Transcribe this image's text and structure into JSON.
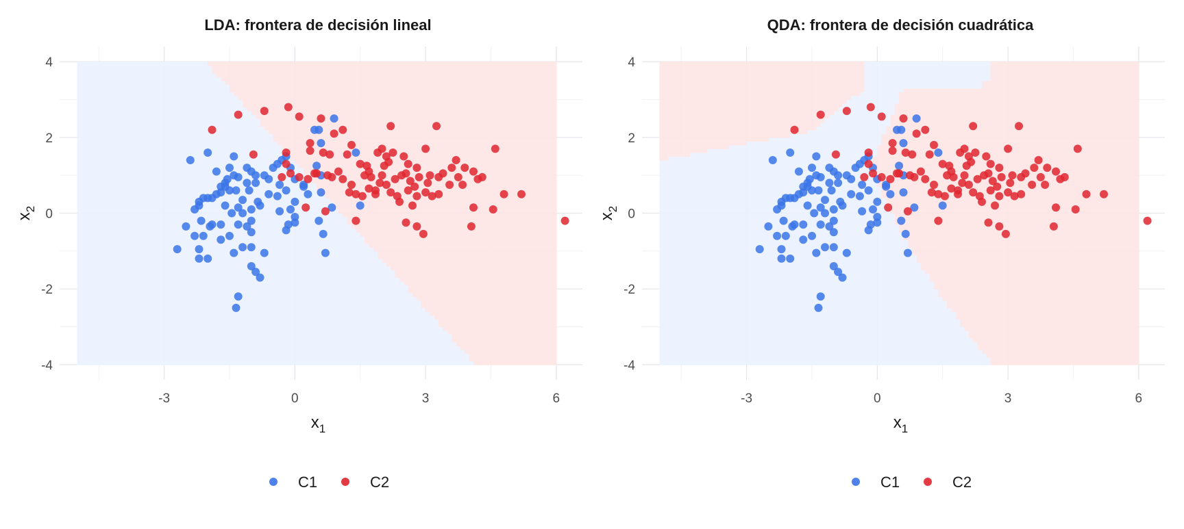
{
  "colors": {
    "class1": "#3b74e8",
    "class2": "#e0262f",
    "region1": "#ebf3ff",
    "region2": "#fde6e6",
    "grid_major": "#e4e4ea",
    "grid_minor": "#f1f1f4"
  },
  "legend": {
    "position": "bottom",
    "items": [
      {
        "label": "C1",
        "color": "#3b74e8"
      },
      {
        "label": "C2",
        "color": "#e0262f"
      }
    ]
  },
  "chart_data": [
    {
      "type": "scatter",
      "model": "lda",
      "title": "LDA: frontera de decisión lineal",
      "xlabel_base": "x",
      "xlabel_sub": "1",
      "ylabel_base": "x",
      "ylabel_sub": "2",
      "xlim": [
        -5.4,
        6.6
      ],
      "ylim": [
        -4.4,
        4.4
      ],
      "xticks": [
        -3,
        0,
        3,
        6
      ],
      "yticks": [
        -4,
        -2,
        0,
        2,
        4
      ],
      "xtick_labels": [
        "-3",
        "0",
        "3",
        "6"
      ],
      "ytick_labels": [
        "-4",
        "-2",
        "0",
        "2",
        "4"
      ],
      "grid": true,
      "region_extent": {
        "x": [
          -5.0,
          6.0
        ],
        "y": [
          -4.0,
          4.0
        ]
      },
      "boundary": {
        "kind": "linear",
        "x_top": -2.05,
        "x_bottom": 4.15
      }
    },
    {
      "type": "scatter",
      "model": "qda",
      "title": "QDA: frontera de decisión cuadrática",
      "xlabel_base": "x",
      "xlabel_sub": "1",
      "ylabel_base": "x",
      "ylabel_sub": "2",
      "xlim": [
        -5.4,
        6.6
      ],
      "ylim": [
        -4.4,
        4.4
      ],
      "xticks": [
        -3,
        0,
        3,
        6
      ],
      "yticks": [
        -4,
        -2,
        0,
        2,
        4
      ],
      "xtick_labels": [
        "-3",
        "0",
        "3",
        "6"
      ],
      "ytick_labels": [
        "-4",
        "-2",
        "0",
        "2",
        "4"
      ],
      "grid": true,
      "region_extent": {
        "x": [
          -5.0,
          6.0
        ],
        "y": [
          -4.0,
          4.0
        ]
      },
      "boundary": {
        "kind": "quadratic"
      }
    }
  ],
  "points": {
    "C1": [
      [
        -2.4,
        1.4
      ],
      [
        -1.5,
        1.2
      ],
      [
        -2.2,
        0.3
      ],
      [
        -2.2,
        0.2
      ],
      [
        -2.1,
        0.4
      ],
      [
        -2.3,
        0.1
      ],
      [
        -2.0,
        0.4
      ],
      [
        -1.9,
        0.4
      ],
      [
        -1.8,
        0.5
      ],
      [
        -1.7,
        0.55
      ],
      [
        -1.7,
        0.7
      ],
      [
        -1.6,
        0.8
      ],
      [
        -1.55,
        0.9
      ],
      [
        -1.4,
        1.0
      ],
      [
        -1.3,
        0.95
      ],
      [
        -1.35,
        0.6
      ],
      [
        -1.5,
        0.6
      ],
      [
        -1.6,
        0.7
      ],
      [
        -1.8,
        1.1
      ],
      [
        -2.0,
        1.6
      ],
      [
        -1.4,
        1.5
      ],
      [
        -1.1,
        1.2
      ],
      [
        -1.0,
        1.1
      ],
      [
        -0.9,
        0.8
      ],
      [
        -0.7,
        1.0
      ],
      [
        -0.6,
        0.9
      ],
      [
        -0.5,
        1.2
      ],
      [
        -0.4,
        1.3
      ],
      [
        -0.3,
        1.4
      ],
      [
        -0.2,
        1.5
      ],
      [
        -0.1,
        1.2
      ],
      [
        0.0,
        0.9
      ],
      [
        0.2,
        0.7
      ],
      [
        -0.2,
        0.6
      ],
      [
        -0.4,
        0.45
      ],
      [
        -0.6,
        0.5
      ],
      [
        -0.8,
        0.2
      ],
      [
        -1.0,
        0.1
      ],
      [
        -1.2,
        0.0
      ],
      [
        -1.0,
        -0.2
      ],
      [
        -1.3,
        -0.3
      ],
      [
        -1.5,
        -0.6
      ],
      [
        -1.7,
        -0.7
      ],
      [
        -1.9,
        -0.3
      ],
      [
        -2.1,
        -0.6
      ],
      [
        -2.3,
        -0.6
      ],
      [
        -2.5,
        -0.35
      ],
      [
        -2.2,
        -0.95
      ],
      [
        -2.2,
        -1.2
      ],
      [
        -2.0,
        -1.2
      ],
      [
        -2.7,
        -0.95
      ],
      [
        -1.0,
        -0.5
      ],
      [
        -1.0,
        -0.9
      ],
      [
        -1.2,
        -0.9
      ],
      [
        -1.4,
        -1.05
      ],
      [
        -1.0,
        -1.4
      ],
      [
        -0.9,
        -1.55
      ],
      [
        -0.8,
        -1.7
      ],
      [
        -1.3,
        -2.2
      ],
      [
        -1.35,
        -2.5
      ],
      [
        -0.7,
        -1.05
      ],
      [
        -1.1,
        -0.35
      ],
      [
        0.0,
        -0.1
      ],
      [
        0.0,
        -0.25
      ],
      [
        -0.1,
        0.1
      ],
      [
        0.0,
        0.3
      ],
      [
        0.2,
        0.75
      ],
      [
        0.3,
        0.5
      ],
      [
        0.5,
        1.25
      ],
      [
        0.6,
        1.0
      ],
      [
        0.55,
        2.2
      ],
      [
        0.45,
        2.2
      ],
      [
        0.6,
        1.85
      ],
      [
        0.9,
        2.5
      ],
      [
        0.6,
        0.55
      ],
      [
        0.55,
        -0.2
      ],
      [
        0.65,
        -0.55
      ],
      [
        0.7,
        -1.05
      ],
      [
        0.85,
        0.15
      ],
      [
        1.4,
        1.6
      ],
      [
        1.5,
        0.2
      ],
      [
        -1.05,
        0.6
      ],
      [
        -0.85,
        0.3
      ],
      [
        -1.2,
        0.35
      ],
      [
        -1.6,
        0.2
      ],
      [
        -1.7,
        -0.3
      ],
      [
        -1.95,
        -0.35
      ],
      [
        -2.15,
        -0.2
      ],
      [
        -0.35,
        0.05
      ],
      [
        -0.2,
        -0.45
      ],
      [
        -0.15,
        -0.3
      ],
      [
        -0.35,
        0.75
      ],
      [
        -0.9,
        1.0
      ],
      [
        -1.1,
        0.8
      ],
      [
        -1.3,
        0.15
      ],
      [
        -1.45,
        0.0
      ]
    ],
    "C2": [
      [
        -1.9,
        2.2
      ],
      [
        -1.3,
        2.6
      ],
      [
        -0.7,
        2.7
      ],
      [
        -0.15,
        2.8
      ],
      [
        0.1,
        2.55
      ],
      [
        0.6,
        2.5
      ],
      [
        0.9,
        2.1
      ],
      [
        1.1,
        2.2
      ],
      [
        2.2,
        2.3
      ],
      [
        3.25,
        2.3
      ],
      [
        -0.95,
        1.55
      ],
      [
        -0.2,
        1.6
      ],
      [
        0.35,
        1.85
      ],
      [
        0.35,
        1.65
      ],
      [
        0.65,
        1.6
      ],
      [
        0.8,
        1.55
      ],
      [
        1.2,
        1.55
      ],
      [
        1.3,
        1.8
      ],
      [
        1.5,
        1.3
      ],
      [
        1.7,
        1.1
      ],
      [
        1.9,
        1.6
      ],
      [
        2.0,
        1.7
      ],
      [
        2.1,
        1.5
      ],
      [
        2.25,
        1.6
      ],
      [
        2.5,
        1.5
      ],
      [
        2.6,
        1.3
      ],
      [
        2.8,
        1.2
      ],
      [
        3.0,
        1.7
      ],
      [
        3.1,
        1.0
      ],
      [
        3.3,
        0.95
      ],
      [
        3.6,
        1.2
      ],
      [
        3.7,
        1.4
      ],
      [
        3.9,
        1.2
      ],
      [
        4.1,
        1.1
      ],
      [
        4.2,
        0.9
      ],
      [
        4.6,
        1.7
      ],
      [
        4.8,
        0.5
      ],
      [
        5.2,
        0.5
      ],
      [
        6.2,
        -0.2
      ],
      [
        4.1,
        0.15
      ],
      [
        4.05,
        -0.35
      ],
      [
        4.55,
        0.1
      ],
      [
        3.55,
        0.75
      ],
      [
        3.3,
        0.5
      ],
      [
        3.0,
        0.55
      ],
      [
        2.8,
        0.45
      ],
      [
        2.7,
        0.2
      ],
      [
        2.55,
        -0.25
      ],
      [
        2.8,
        -0.35
      ],
      [
        2.95,
        -0.55
      ],
      [
        2.4,
        0.3
      ],
      [
        2.2,
        0.55
      ],
      [
        1.95,
        0.8
      ],
      [
        1.85,
        0.6
      ],
      [
        1.7,
        0.65
      ],
      [
        1.55,
        0.45
      ],
      [
        1.4,
        0.5
      ],
      [
        1.3,
        0.75
      ],
      [
        1.1,
        0.9
      ],
      [
        1.0,
        1.1
      ],
      [
        0.75,
        1.0
      ],
      [
        0.5,
        1.05
      ],
      [
        0.3,
        0.9
      ],
      [
        0.1,
        0.95
      ],
      [
        -0.1,
        1.05
      ],
      [
        -0.3,
        0.95
      ],
      [
        0.7,
        0.05
      ],
      [
        1.4,
        -0.2
      ],
      [
        0.25,
        0.15
      ],
      [
        1.6,
        1.0
      ],
      [
        2.0,
        1.0
      ],
      [
        2.1,
        0.75
      ],
      [
        2.3,
        0.9
      ],
      [
        2.45,
        1.0
      ],
      [
        2.65,
        0.85
      ],
      [
        2.85,
        0.95
      ],
      [
        3.05,
        0.8
      ],
      [
        3.4,
        1.05
      ],
      [
        3.75,
        0.95
      ],
      [
        3.85,
        0.75
      ],
      [
        4.3,
        0.95
      ],
      [
        2.35,
        0.45
      ],
      [
        1.75,
        0.95
      ],
      [
        1.65,
        1.25
      ],
      [
        2.05,
        1.25
      ],
      [
        1.85,
        0.5
      ],
      [
        2.55,
        1.05
      ],
      [
        2.75,
        0.7
      ],
      [
        3.15,
        0.45
      ],
      [
        0.45,
        1.05
      ],
      [
        -0.2,
        1.3
      ],
      [
        0.85,
        0.95
      ],
      [
        1.25,
        0.55
      ],
      [
        2.15,
        1.35
      ],
      [
        2.6,
        0.6
      ]
    ]
  }
}
